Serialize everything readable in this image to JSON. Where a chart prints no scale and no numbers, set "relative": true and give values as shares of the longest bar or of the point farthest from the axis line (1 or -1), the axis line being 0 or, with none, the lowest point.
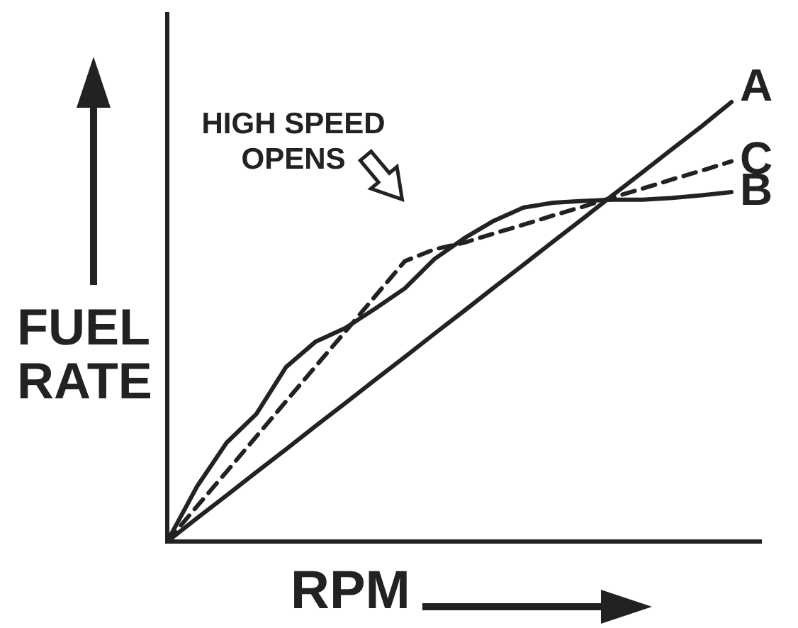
{
  "chart_data": {
    "type": "line",
    "relative": true,
    "xlabel": "RPM",
    "ylabel": "FUEL RATE",
    "tick_labels": false,
    "grid": false,
    "legend": false,
    "marker": "none",
    "annotations": [
      "HIGH SPEED OPENS"
    ],
    "categories": [
      null,
      null,
      null,
      null,
      null,
      null,
      null,
      null,
      null,
      null,
      null,
      null,
      null,
      null,
      null,
      null,
      null,
      null,
      null,
      null,
      null
    ],
    "series": [
      {
        "name": "A",
        "color": "#222222",
        "line_style": "solid",
        "values": [
          0,
          0.053,
          0.105,
          0.158,
          0.21,
          0.263,
          0.315,
          0.368,
          0.42,
          0.473,
          0.525,
          0.578,
          0.63,
          0.683,
          0.735,
          0.788,
          0.84,
          0.893,
          0.945,
          1,
          null
        ]
      },
      {
        "name": "C",
        "color": "#222222",
        "line_style": "dashed",
        "values": [
          0,
          0.08,
          0.159,
          0.239,
          0.319,
          0.399,
          0.478,
          0.558,
          0.638,
          0.665,
          0.68,
          0.701,
          0.721,
          0.742,
          0.762,
          0.783,
          0.803,
          0.824,
          0.844,
          0.865,
          null
        ]
      },
      {
        "name": "B",
        "color": "#222222",
        "line_style": "solid",
        "values": [
          0,
          0.125,
          0.225,
          0.29,
          0.397,
          0.455,
          0.486,
          0.53,
          0.576,
          0.643,
          0.69,
          0.73,
          0.76,
          0.771,
          0.775,
          0.778,
          0.778,
          0.782,
          0.788,
          0.795,
          null
        ]
      }
    ]
  }
}
